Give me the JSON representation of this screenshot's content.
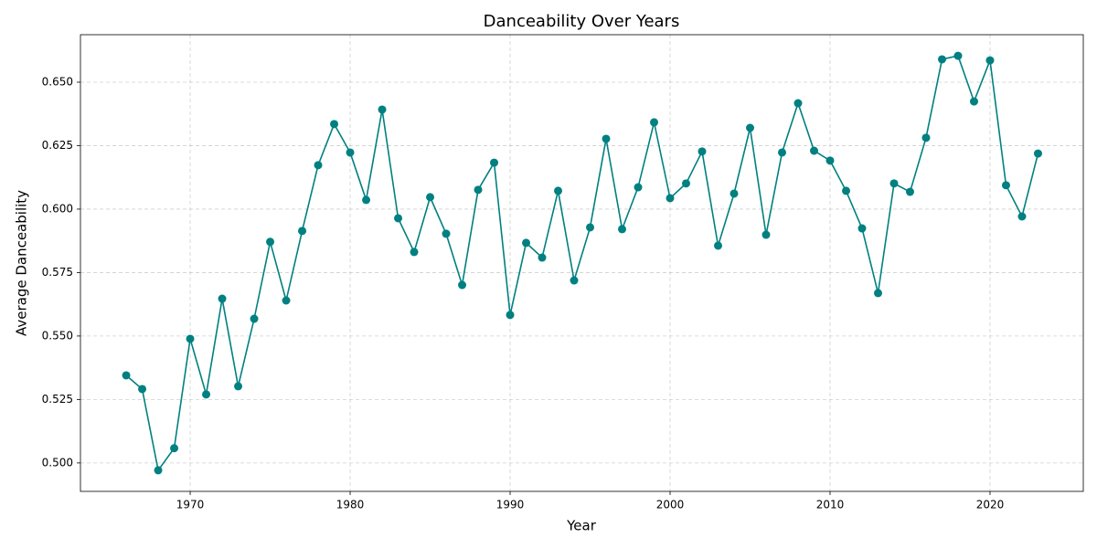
{
  "chart_data": {
    "type": "line",
    "title": "Danceability Over Years",
    "x_label": "Year",
    "y_label": "Average Danceability",
    "x": [
      1966,
      1967,
      1968,
      1969,
      1970,
      1971,
      1972,
      1973,
      1974,
      1975,
      1976,
      1977,
      1978,
      1979,
      1980,
      1981,
      1982,
      1983,
      1984,
      1985,
      1986,
      1987,
      1988,
      1989,
      1990,
      1991,
      1992,
      1993,
      1994,
      1995,
      1996,
      1997,
      1998,
      1999,
      2000,
      2001,
      2002,
      2003,
      2004,
      2005,
      2006,
      2007,
      2008,
      2009,
      2010,
      2011,
      2012,
      2013,
      2014,
      2015,
      2016,
      2017,
      2018,
      2019,
      2020,
      2021,
      2022,
      2023
    ],
    "series": [
      {
        "name": "Average Danceability",
        "color": "#008080",
        "values": [
          0.5345,
          0.5291,
          0.4971,
          0.5058,
          0.5489,
          0.527,
          0.5647,
          0.5302,
          0.5568,
          0.5871,
          0.564,
          0.5914,
          0.6173,
          0.6335,
          0.6223,
          0.6036,
          0.6392,
          0.5964,
          0.5831,
          0.6047,
          0.5903,
          0.5701,
          0.6076,
          0.6183,
          0.5583,
          0.5867,
          0.5809,
          0.6072,
          0.5719,
          0.5928,
          0.6277,
          0.5921,
          0.6086,
          0.6342,
          0.6043,
          0.6101,
          0.6227,
          0.5856,
          0.6061,
          0.632,
          0.5899,
          0.6223,
          0.6417,
          0.623,
          0.6191,
          0.6072,
          0.5924,
          0.5669,
          0.6101,
          0.6068,
          0.6281,
          0.659,
          0.6604,
          0.6424,
          0.6586,
          0.6094,
          0.5971,
          0.6219
        ]
      }
    ],
    "xlim": [
      1963.14,
      2025.83
    ],
    "ylim": [
      0.4888,
      0.6687
    ],
    "xticks": [
      1970,
      1980,
      1990,
      2000,
      2010,
      2020
    ],
    "yticks": [
      {
        "value": 0.5,
        "label": "0.500"
      },
      {
        "value": 0.525,
        "label": "0.525"
      },
      {
        "value": 0.55,
        "label": "0.550"
      },
      {
        "value": 0.575,
        "label": "0.575"
      },
      {
        "value": 0.6,
        "label": "0.600"
      },
      {
        "value": 0.625,
        "label": "0.625"
      },
      {
        "value": 0.65,
        "label": "0.650"
      }
    ],
    "grid": true
  }
}
